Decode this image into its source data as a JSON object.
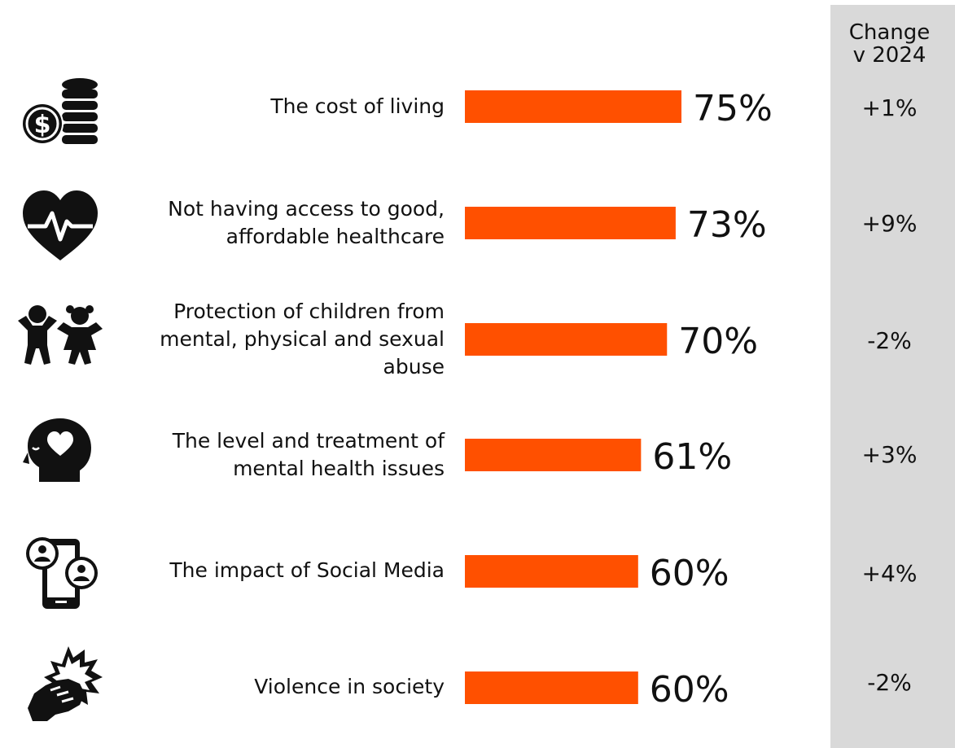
{
  "change_header_line1": "Change",
  "change_header_line2": "v 2024",
  "accent_color": "#ff5000",
  "chart_data": {
    "type": "bar",
    "orientation": "horizontal",
    "categories": [
      "The cost of living",
      "Not having access to good, affordable healthcare",
      "Protection of children from mental, physical and sexual abuse",
      "The level and treatment of mental health issues",
      "The impact of Social Media",
      "Violence in society"
    ],
    "values": [
      75,
      73,
      70,
      61,
      60,
      60
    ],
    "value_labels": [
      "75%",
      "73%",
      "70%",
      "61%",
      "60%",
      "60%"
    ],
    "change_labels": [
      "+1%",
      "+9%",
      "-2%",
      "+3%",
      "+4%",
      "-2%"
    ],
    "xlim": [
      0,
      100
    ],
    "grid": false,
    "legend": "none"
  },
  "rows": [
    {
      "icon": "money-coins-icon",
      "label_lines": [
        "The cost of living"
      ]
    },
    {
      "icon": "heart-pulse-icon",
      "label_lines": [
        "Not having access to good,",
        "affordable healthcare"
      ]
    },
    {
      "icon": "children-icon",
      "label_lines": [
        "Protection of children from",
        "mental, physical and sexual",
        "abuse"
      ]
    },
    {
      "icon": "mind-heart-icon",
      "label_lines": [
        "The level and treatment of",
        "mental health issues"
      ]
    },
    {
      "icon": "social-media-phone-icon",
      "label_lines": [
        "The impact of Social Media"
      ]
    },
    {
      "icon": "violence-fist-icon",
      "label_lines": [
        "Violence in society"
      ]
    }
  ]
}
